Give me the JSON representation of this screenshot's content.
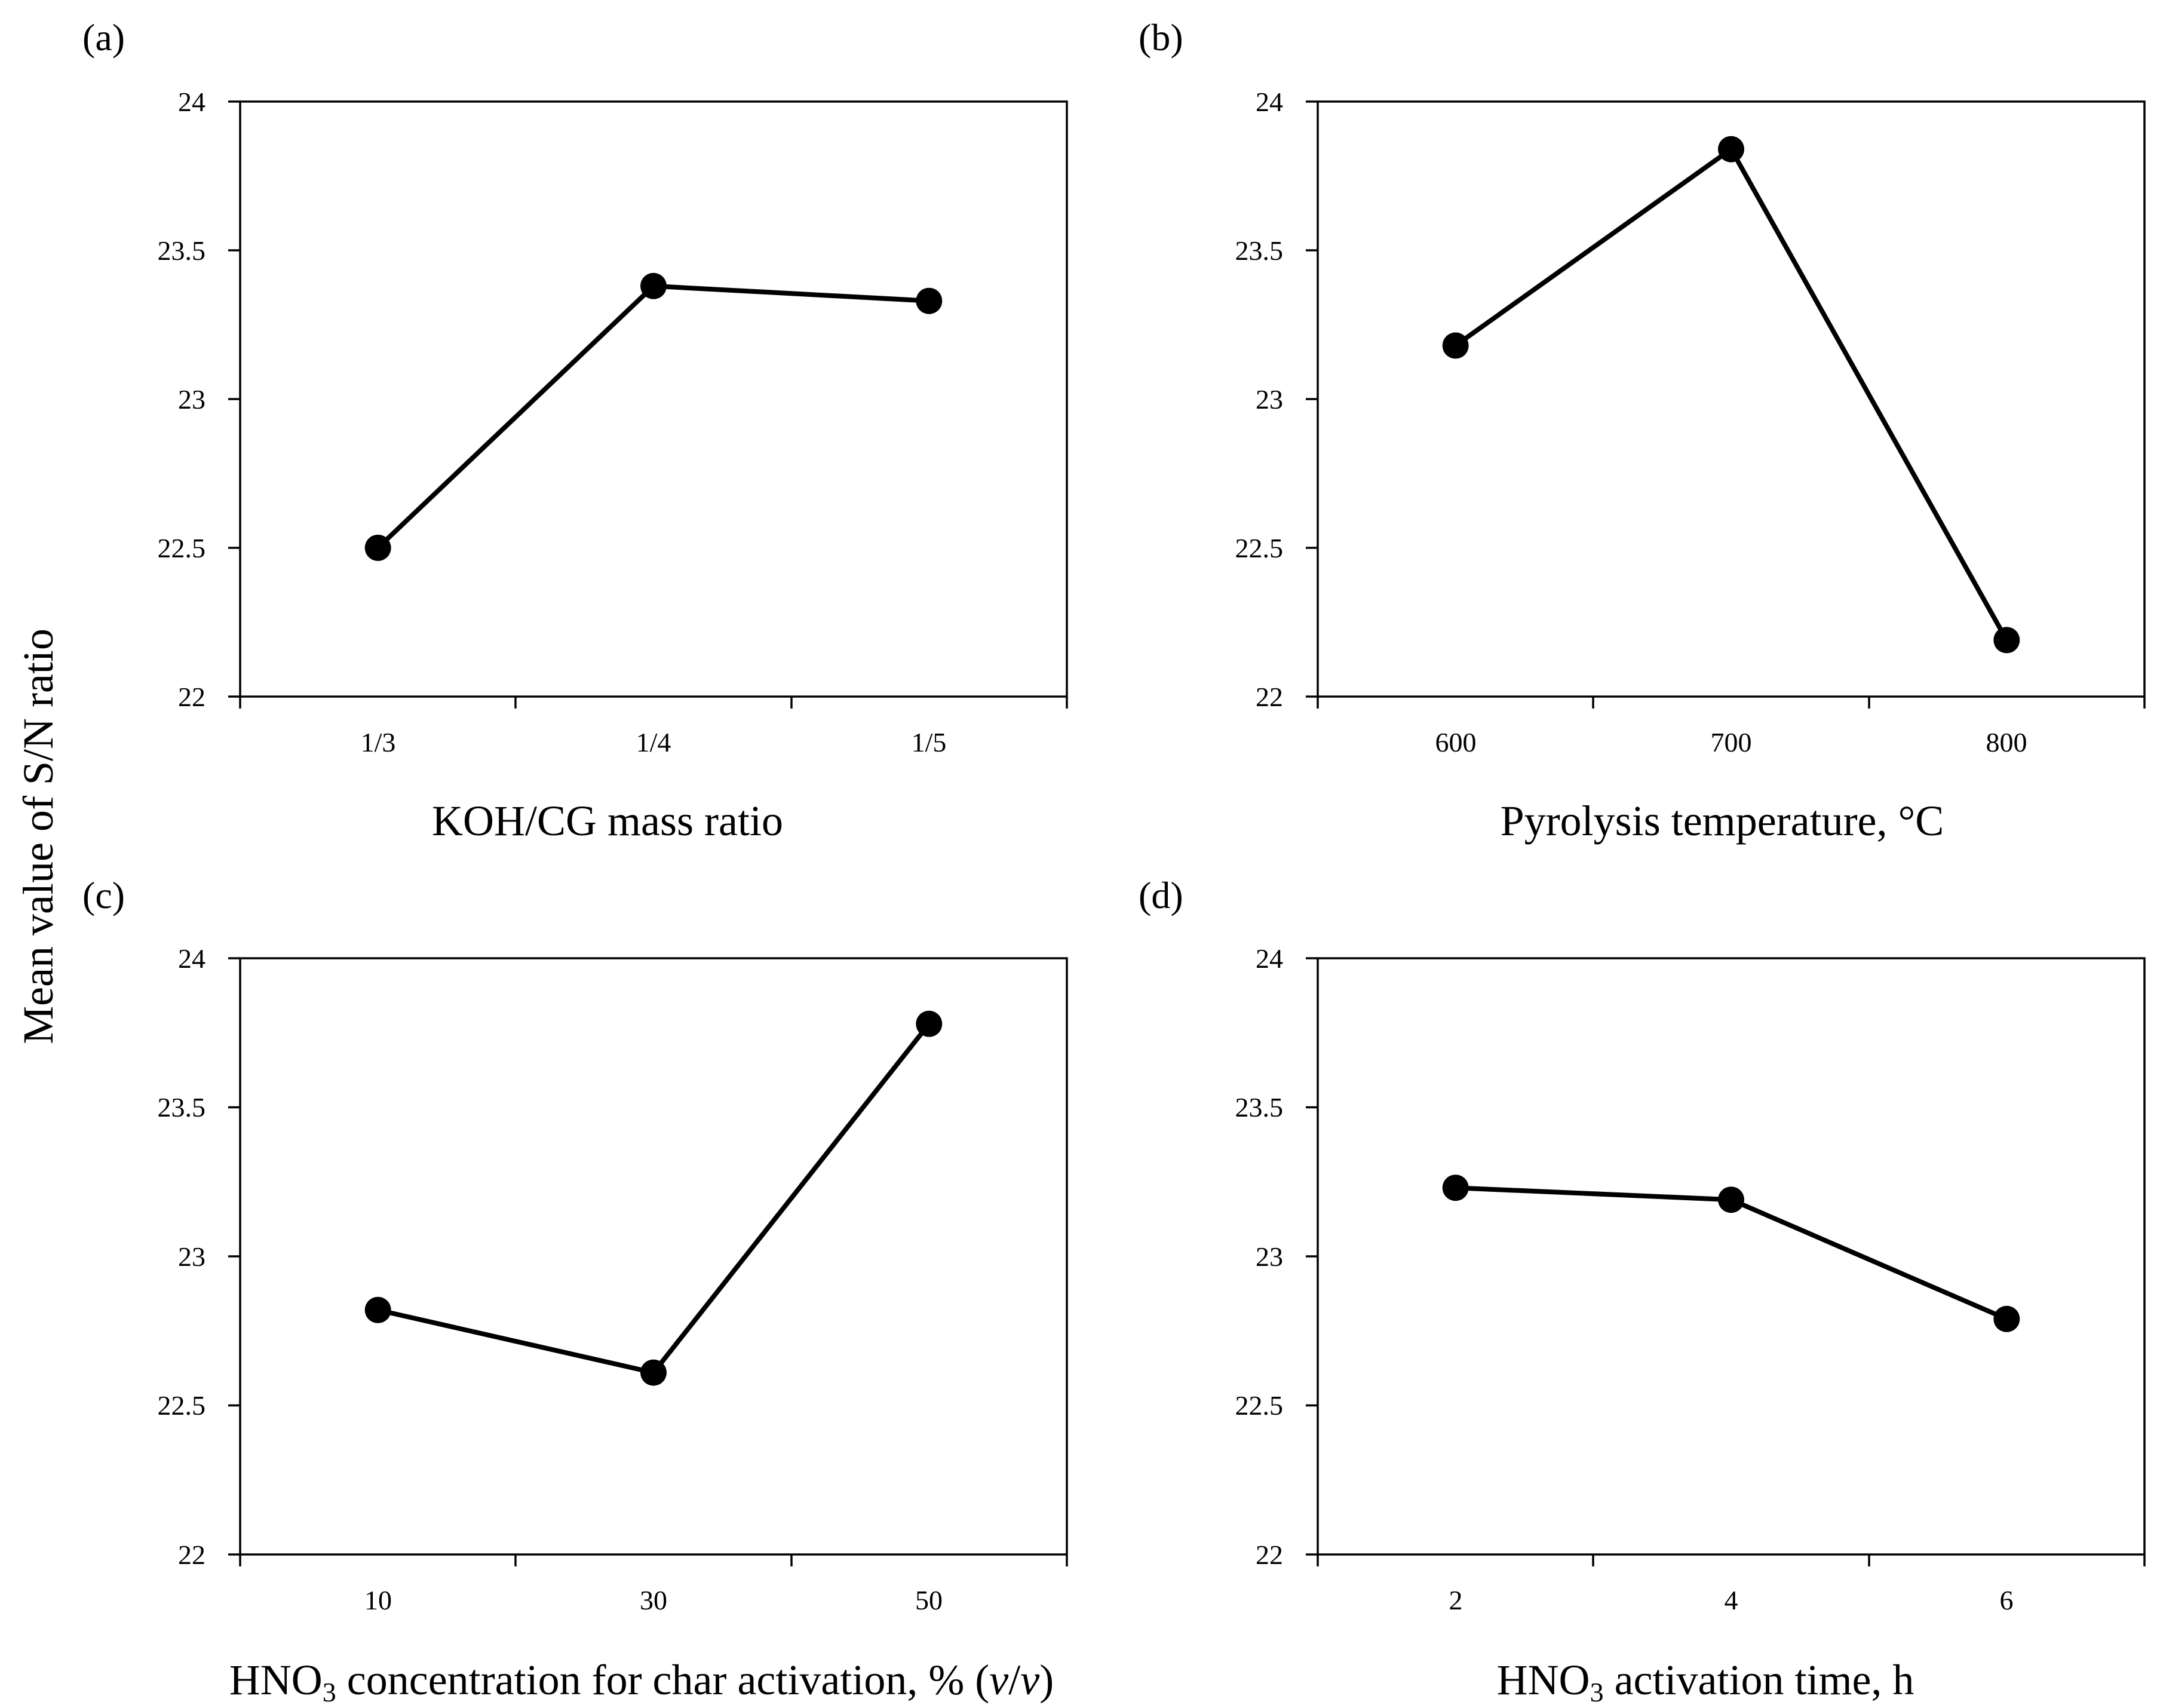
{
  "figure": {
    "ylabel": "Mean value of S/N ratio"
  },
  "chart_data": [
    {
      "id": "a",
      "panel_label": "(a)",
      "type": "line",
      "categories": [
        "1/3",
        "1/4",
        "1/5"
      ],
      "values": [
        22.5,
        23.38,
        23.33
      ],
      "xlabel": "KOH/CG mass ratio",
      "ylabel": "Mean value of S/N ratio",
      "ylim": [
        22,
        24
      ],
      "yticks": [
        "22",
        "22.5",
        "23",
        "23.5",
        "24"
      ],
      "grid": false
    },
    {
      "id": "b",
      "panel_label": "(b)",
      "type": "line",
      "categories": [
        "600",
        "700",
        "800"
      ],
      "values": [
        23.18,
        23.84,
        22.19
      ],
      "xlabel": "Pyrolysis temperature, °C",
      "ylabel": "Mean value of S/N ratio",
      "ylim": [
        22,
        24
      ],
      "yticks": [
        "22",
        "22.5",
        "23",
        "23.5",
        "24"
      ],
      "grid": false
    },
    {
      "id": "c",
      "panel_label": "(c)",
      "type": "line",
      "categories": [
        "10",
        "30",
        "50"
      ],
      "values": [
        22.82,
        22.61,
        23.78
      ],
      "xlabel_parts": [
        "HNO",
        "3",
        " concentration for char activation, % (",
        "v",
        "/",
        "v",
        ")"
      ],
      "ylabel": "Mean value of S/N ratio",
      "ylim": [
        22,
        24
      ],
      "yticks": [
        "22",
        "22.5",
        "23",
        "23.5",
        "24"
      ],
      "grid": false
    },
    {
      "id": "d",
      "panel_label": "(d)",
      "type": "line",
      "categories": [
        "2",
        "4",
        "6"
      ],
      "values": [
        23.23,
        23.19,
        22.79
      ],
      "xlabel_parts": [
        "HNO",
        "3",
        " activation time, h"
      ],
      "ylabel": "Mean value of S/N ratio",
      "ylim": [
        22,
        24
      ],
      "yticks": [
        "22",
        "22.5",
        "23",
        "23.5",
        "24"
      ],
      "grid": false
    }
  ]
}
